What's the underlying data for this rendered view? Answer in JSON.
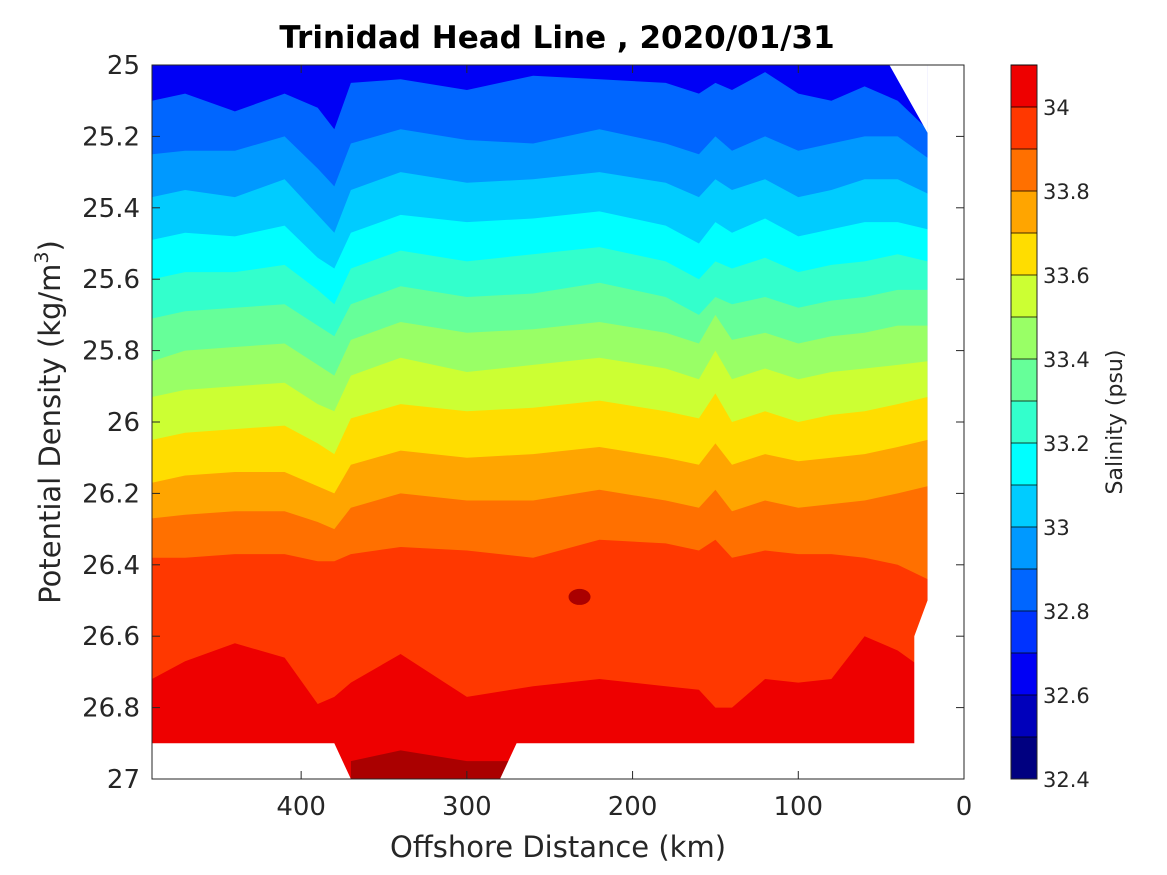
{
  "chart_data": {
    "type": "heatmap",
    "subtype": "filled-contour",
    "title": "Trinidad Head Line , 2020/01/31",
    "xlabel": "Offshore Distance (km)",
    "ylabel": "Potential Density (kg/m",
    "ylabel_sup": "3",
    "ylabel_close": ")",
    "xlim": [
      490,
      0
    ],
    "ylim": [
      25,
      27
    ],
    "x_reversed": true,
    "y_reversed": true,
    "x_ticks": [
      400,
      300,
      200,
      100,
      0
    ],
    "y_ticks": [
      25,
      25.2,
      25.4,
      25.6,
      25.8,
      26,
      26.2,
      26.4,
      26.6,
      26.8,
      27
    ],
    "x_tick_labels": [
      "400",
      "300",
      "200",
      "100",
      "0"
    ],
    "y_tick_labels": [
      "25",
      "25.2",
      "25.4",
      "25.6",
      "25.8",
      "26",
      "26.2",
      "26.4",
      "26.6",
      "26.8",
      "27"
    ],
    "grid": false,
    "colorbar": {
      "label": "Salinity (psu)",
      "range": [
        32.4,
        34.1
      ],
      "levels": [
        32.4,
        32.5,
        32.6,
        32.7,
        32.8,
        32.9,
        33.0,
        33.1,
        33.2,
        33.3,
        33.4,
        33.5,
        33.6,
        33.7,
        33.8,
        33.9,
        34.0,
        34.1
      ],
      "colors": [
        "#000080",
        "#0000bb",
        "#0000f5",
        "#0033ff",
        "#0066ff",
        "#0099ff",
        "#00ccff",
        "#00ffff",
        "#33ffcc",
        "#66ff99",
        "#99ff66",
        "#ccff33",
        "#ffdd00",
        "#ffa500",
        "#ff7000",
        "#ff3800",
        "#ee0000",
        "#aa0000"
      ],
      "ticks": [
        32.4,
        32.6,
        32.8,
        33,
        33.2,
        33.4,
        33.6,
        33.8,
        34
      ],
      "tick_labels": [
        "32.4",
        "32.6",
        "32.8",
        "33",
        "33.2",
        "33.4",
        "33.6",
        "33.8",
        "34"
      ]
    },
    "contour_lines": [
      {
        "level": 32.8,
        "x": [
          490,
          470,
          440,
          410,
          390,
          380,
          370,
          340,
          300,
          260,
          220,
          180,
          160,
          150,
          140,
          120,
          100,
          80,
          60,
          40,
          22
        ],
        "y": [
          25.1,
          25.08,
          25.13,
          25.08,
          25.12,
          25.18,
          25.05,
          25.04,
          25.07,
          25.03,
          25.04,
          25.05,
          25.08,
          25.05,
          25.07,
          25.02,
          25.08,
          25.1,
          25.06,
          25.1,
          25.18
        ]
      },
      {
        "level": 32.9,
        "x": [
          490,
          470,
          440,
          410,
          390,
          380,
          370,
          340,
          300,
          260,
          220,
          180,
          160,
          150,
          140,
          120,
          100,
          80,
          60,
          40,
          22
        ],
        "y": [
          25.25,
          25.24,
          25.24,
          25.2,
          25.29,
          25.34,
          25.22,
          25.18,
          25.21,
          25.22,
          25.18,
          25.22,
          25.25,
          25.2,
          25.24,
          25.2,
          25.24,
          25.22,
          25.2,
          25.2,
          25.26
        ]
      },
      {
        "level": 33.0,
        "x": [
          490,
          470,
          440,
          410,
          390,
          380,
          370,
          340,
          300,
          260,
          220,
          180,
          160,
          150,
          140,
          120,
          100,
          80,
          60,
          40,
          22
        ],
        "y": [
          25.37,
          25.35,
          25.37,
          25.32,
          25.42,
          25.47,
          25.35,
          25.3,
          25.33,
          25.32,
          25.3,
          25.33,
          25.37,
          25.32,
          25.35,
          25.32,
          25.37,
          25.35,
          25.32,
          25.32,
          25.36
        ]
      },
      {
        "level": 33.1,
        "x": [
          490,
          470,
          440,
          410,
          390,
          380,
          370,
          340,
          300,
          260,
          220,
          180,
          160,
          150,
          140,
          120,
          100,
          80,
          60,
          40,
          22
        ],
        "y": [
          25.49,
          25.47,
          25.48,
          25.45,
          25.54,
          25.57,
          25.47,
          25.42,
          25.44,
          25.43,
          25.41,
          25.45,
          25.5,
          25.44,
          25.47,
          25.43,
          25.48,
          25.46,
          25.44,
          25.44,
          25.46
        ]
      },
      {
        "level": 33.2,
        "x": [
          490,
          470,
          440,
          410,
          390,
          380,
          370,
          340,
          300,
          260,
          220,
          180,
          160,
          150,
          140,
          120,
          100,
          80,
          60,
          40,
          22
        ],
        "y": [
          25.6,
          25.58,
          25.58,
          25.56,
          25.63,
          25.67,
          25.57,
          25.52,
          25.55,
          25.53,
          25.51,
          25.55,
          25.6,
          25.55,
          25.57,
          25.54,
          25.58,
          25.56,
          25.55,
          25.53,
          25.55
        ]
      },
      {
        "level": 33.3,
        "x": [
          490,
          470,
          440,
          410,
          390,
          380,
          370,
          340,
          300,
          260,
          220,
          180,
          160,
          150,
          140,
          120,
          100,
          80,
          60,
          40,
          22
        ],
        "y": [
          25.71,
          25.69,
          25.68,
          25.67,
          25.73,
          25.76,
          25.67,
          25.62,
          25.65,
          25.64,
          25.61,
          25.65,
          25.7,
          25.65,
          25.67,
          25.65,
          25.68,
          25.66,
          25.65,
          25.63,
          25.63
        ]
      },
      {
        "level": 33.4,
        "x": [
          490,
          470,
          440,
          410,
          390,
          380,
          370,
          340,
          300,
          260,
          220,
          180,
          160,
          150,
          140,
          120,
          100,
          80,
          60,
          40,
          22
        ],
        "y": [
          25.83,
          25.8,
          25.79,
          25.78,
          25.84,
          25.87,
          25.77,
          25.72,
          25.75,
          25.74,
          25.72,
          25.75,
          25.78,
          25.7,
          25.77,
          25.75,
          25.78,
          25.76,
          25.75,
          25.73,
          25.73
        ]
      },
      {
        "level": 33.5,
        "x": [
          490,
          470,
          440,
          410,
          390,
          380,
          370,
          340,
          300,
          260,
          220,
          180,
          160,
          150,
          140,
          120,
          100,
          80,
          60,
          40,
          22
        ],
        "y": [
          25.93,
          25.91,
          25.9,
          25.89,
          25.95,
          25.97,
          25.87,
          25.82,
          25.86,
          25.84,
          25.82,
          25.85,
          25.88,
          25.8,
          25.88,
          25.85,
          25.88,
          25.86,
          25.85,
          25.84,
          25.83
        ]
      },
      {
        "level": 33.6,
        "x": [
          490,
          470,
          440,
          410,
          390,
          380,
          370,
          340,
          300,
          260,
          220,
          180,
          160,
          150,
          140,
          120,
          100,
          80,
          60,
          40,
          22
        ],
        "y": [
          26.05,
          26.03,
          26.02,
          26.01,
          26.06,
          26.09,
          25.99,
          25.95,
          25.97,
          25.96,
          25.94,
          25.97,
          25.99,
          25.92,
          26.0,
          25.97,
          26.0,
          25.98,
          25.97,
          25.95,
          25.93
        ]
      },
      {
        "level": 33.7,
        "x": [
          490,
          470,
          440,
          410,
          390,
          380,
          370,
          340,
          300,
          260,
          220,
          180,
          160,
          150,
          140,
          120,
          100,
          80,
          60,
          40,
          22
        ],
        "y": [
          26.17,
          26.15,
          26.14,
          26.14,
          26.18,
          26.2,
          26.12,
          26.08,
          26.1,
          26.09,
          26.07,
          26.1,
          26.12,
          26.06,
          26.12,
          26.09,
          26.11,
          26.1,
          26.09,
          26.07,
          26.05
        ]
      },
      {
        "level": 33.8,
        "x": [
          490,
          470,
          440,
          410,
          390,
          380,
          370,
          340,
          300,
          260,
          220,
          180,
          160,
          150,
          140,
          120,
          100,
          80,
          60,
          40,
          22
        ],
        "y": [
          26.27,
          26.26,
          26.25,
          26.25,
          26.28,
          26.3,
          26.24,
          26.2,
          26.22,
          26.22,
          26.19,
          26.22,
          26.24,
          26.19,
          26.25,
          26.22,
          26.24,
          26.23,
          26.22,
          26.2,
          26.18
        ]
      },
      {
        "level": 33.9,
        "x": [
          490,
          470,
          440,
          410,
          390,
          380,
          370,
          340,
          300,
          260,
          220,
          180,
          160,
          150,
          140,
          120,
          100,
          80,
          60,
          40,
          22
        ],
        "y": [
          26.38,
          26.38,
          26.37,
          26.37,
          26.39,
          26.39,
          26.37,
          26.35,
          26.36,
          26.38,
          26.33,
          26.34,
          26.36,
          26.33,
          26.38,
          26.36,
          26.37,
          26.37,
          26.38,
          26.4,
          26.44
        ]
      },
      {
        "level": 34.0,
        "x": [
          490,
          470,
          440,
          410,
          390,
          380,
          370,
          340,
          300,
          260,
          220,
          180,
          160,
          150,
          140,
          120,
          100,
          80,
          60,
          40,
          22
        ],
        "y": [
          26.72,
          26.67,
          26.62,
          26.66,
          26.79,
          26.77,
          26.73,
          26.65,
          26.77,
          26.74,
          26.72,
          26.74,
          26.75,
          26.8,
          26.8,
          26.72,
          26.73,
          26.72,
          26.6,
          26.64,
          26.7
        ]
      },
      {
        "level": 34.1,
        "x": [
          370,
          340,
          300,
          270
        ],
        "y": [
          26.95,
          26.92,
          26.95,
          26.95
        ]
      }
    ],
    "data_coverage": {
      "x": [
        490,
        450,
        400,
        380,
        370,
        280,
        270,
        100,
        80,
        40,
        35,
        25,
        22,
        22,
        30,
        30
      ],
      "y_bottom": [
        26.9,
        26.9,
        26.9,
        26.9,
        27,
        27,
        26.9,
        26.9,
        26.9,
        26.9,
        26.9,
        26.9,
        26.5,
        26.5,
        26.6,
        26.9
      ],
      "top_right_corner": {
        "x": [
          45,
          22
        ],
        "y": [
          25,
          25.19
        ]
      }
    }
  }
}
